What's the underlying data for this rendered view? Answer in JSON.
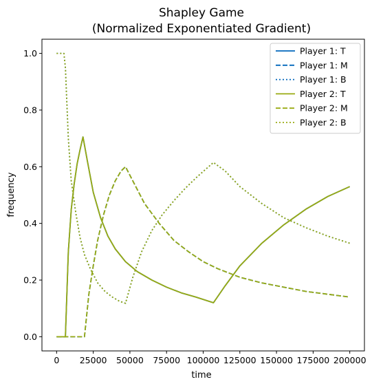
{
  "chart_data": {
    "type": "line",
    "title_line1": "Shapley Game",
    "title_line2": "(Normalized Exponentiated Gradient)",
    "xlabel": "time",
    "ylabel": "frequency",
    "xlim": [
      -10000,
      210000
    ],
    "ylim": [
      -0.05,
      1.05
    ],
    "xticks": [
      0,
      25000,
      50000,
      75000,
      100000,
      125000,
      150000,
      175000,
      200000
    ],
    "xtick_labels": [
      "0",
      "25000",
      "50000",
      "75000",
      "100000",
      "125000",
      "150000",
      "175000",
      "200000"
    ],
    "yticks": [
      0.0,
      0.2,
      0.4,
      0.6,
      0.8,
      1.0
    ],
    "ytick_labels": [
      "0.0",
      "0.2",
      "0.4",
      "0.6",
      "0.8",
      "1.0"
    ],
    "grid": false,
    "legend_position": "top-right",
    "series": [
      {
        "name": "Player 1: T",
        "color": "#0066bb",
        "dash": "solid",
        "points": [
          [
            0,
            0
          ],
          [
            6000,
            0
          ],
          [
            8000,
            0.3
          ],
          [
            10000,
            0.45
          ],
          [
            12000,
            0.54
          ],
          [
            14000,
            0.61
          ],
          [
            16000,
            0.66
          ],
          [
            18000,
            0.705
          ],
          [
            21000,
            0.62
          ],
          [
            25000,
            0.51
          ],
          [
            30000,
            0.42
          ],
          [
            35000,
            0.355
          ],
          [
            40000,
            0.31
          ],
          [
            47000,
            0.265
          ],
          [
            55000,
            0.23
          ],
          [
            65000,
            0.2
          ],
          [
            75000,
            0.175
          ],
          [
            85000,
            0.155
          ],
          [
            95000,
            0.14
          ],
          [
            107000,
            0.12
          ],
          [
            115000,
            0.18
          ],
          [
            125000,
            0.25
          ],
          [
            140000,
            0.33
          ],
          [
            155000,
            0.395
          ],
          [
            170000,
            0.45
          ],
          [
            185000,
            0.495
          ],
          [
            200000,
            0.53
          ]
        ]
      },
      {
        "name": "Player 1: M",
        "color": "#0066bb",
        "dash": "dashed",
        "points": [
          [
            0,
            0
          ],
          [
            19000,
            0
          ],
          [
            22000,
            0.15
          ],
          [
            25000,
            0.25
          ],
          [
            28000,
            0.34
          ],
          [
            32000,
            0.43
          ],
          [
            36000,
            0.5
          ],
          [
            40000,
            0.55
          ],
          [
            44000,
            0.585
          ],
          [
            47000,
            0.6
          ],
          [
            52000,
            0.55
          ],
          [
            60000,
            0.47
          ],
          [
            70000,
            0.4
          ],
          [
            80000,
            0.34
          ],
          [
            90000,
            0.3
          ],
          [
            100000,
            0.265
          ],
          [
            110000,
            0.24
          ],
          [
            125000,
            0.21
          ],
          [
            140000,
            0.19
          ],
          [
            155000,
            0.175
          ],
          [
            170000,
            0.16
          ],
          [
            185000,
            0.15
          ],
          [
            200000,
            0.14
          ]
        ]
      },
      {
        "name": "Player 1: B",
        "color": "#0066bb",
        "dash": "dotted",
        "points": [
          [
            0,
            1.0
          ],
          [
            5000,
            1.0
          ],
          [
            6000,
            0.95
          ],
          [
            8000,
            0.7
          ],
          [
            10000,
            0.55
          ],
          [
            13000,
            0.44
          ],
          [
            16000,
            0.35
          ],
          [
            19000,
            0.29
          ],
          [
            23000,
            0.24
          ],
          [
            28000,
            0.19
          ],
          [
            33000,
            0.16
          ],
          [
            38000,
            0.14
          ],
          [
            43000,
            0.125
          ],
          [
            47000,
            0.118
          ],
          [
            52000,
            0.21
          ],
          [
            58000,
            0.3
          ],
          [
            65000,
            0.375
          ],
          [
            72000,
            0.43
          ],
          [
            80000,
            0.48
          ],
          [
            88000,
            0.525
          ],
          [
            96000,
            0.565
          ],
          [
            107000,
            0.615
          ],
          [
            115000,
            0.585
          ],
          [
            125000,
            0.53
          ],
          [
            140000,
            0.47
          ],
          [
            155000,
            0.42
          ],
          [
            170000,
            0.385
          ],
          [
            185000,
            0.355
          ],
          [
            200000,
            0.33
          ]
        ]
      },
      {
        "name": "Player 2: T",
        "color": "#99aa11",
        "dash": "solid",
        "points": [
          [
            0,
            0
          ],
          [
            6000,
            0
          ],
          [
            8000,
            0.3
          ],
          [
            10000,
            0.45
          ],
          [
            12000,
            0.54
          ],
          [
            14000,
            0.61
          ],
          [
            16000,
            0.66
          ],
          [
            18000,
            0.705
          ],
          [
            21000,
            0.62
          ],
          [
            25000,
            0.51
          ],
          [
            30000,
            0.42
          ],
          [
            35000,
            0.355
          ],
          [
            40000,
            0.31
          ],
          [
            47000,
            0.265
          ],
          [
            55000,
            0.23
          ],
          [
            65000,
            0.2
          ],
          [
            75000,
            0.175
          ],
          [
            85000,
            0.155
          ],
          [
            95000,
            0.14
          ],
          [
            107000,
            0.12
          ],
          [
            115000,
            0.18
          ],
          [
            125000,
            0.25
          ],
          [
            140000,
            0.33
          ],
          [
            155000,
            0.395
          ],
          [
            170000,
            0.45
          ],
          [
            185000,
            0.495
          ],
          [
            200000,
            0.53
          ]
        ]
      },
      {
        "name": "Player 2: M",
        "color": "#99aa11",
        "dash": "dashed",
        "points": [
          [
            0,
            0
          ],
          [
            19000,
            0
          ],
          [
            22000,
            0.15
          ],
          [
            25000,
            0.25
          ],
          [
            28000,
            0.34
          ],
          [
            32000,
            0.43
          ],
          [
            36000,
            0.5
          ],
          [
            40000,
            0.55
          ],
          [
            44000,
            0.585
          ],
          [
            47000,
            0.6
          ],
          [
            52000,
            0.55
          ],
          [
            60000,
            0.47
          ],
          [
            70000,
            0.4
          ],
          [
            80000,
            0.34
          ],
          [
            90000,
            0.3
          ],
          [
            100000,
            0.265
          ],
          [
            110000,
            0.24
          ],
          [
            125000,
            0.21
          ],
          [
            140000,
            0.19
          ],
          [
            155000,
            0.175
          ],
          [
            170000,
            0.16
          ],
          [
            185000,
            0.15
          ],
          [
            200000,
            0.14
          ]
        ]
      },
      {
        "name": "Player 2: B",
        "color": "#99aa11",
        "dash": "dotted",
        "points": [
          [
            0,
            1.0
          ],
          [
            5000,
            1.0
          ],
          [
            6000,
            0.95
          ],
          [
            8000,
            0.7
          ],
          [
            10000,
            0.55
          ],
          [
            13000,
            0.44
          ],
          [
            16000,
            0.35
          ],
          [
            19000,
            0.29
          ],
          [
            23000,
            0.24
          ],
          [
            28000,
            0.19
          ],
          [
            33000,
            0.16
          ],
          [
            38000,
            0.14
          ],
          [
            43000,
            0.125
          ],
          [
            47000,
            0.118
          ],
          [
            52000,
            0.21
          ],
          [
            58000,
            0.3
          ],
          [
            65000,
            0.375
          ],
          [
            72000,
            0.43
          ],
          [
            80000,
            0.48
          ],
          [
            88000,
            0.525
          ],
          [
            96000,
            0.565
          ],
          [
            107000,
            0.615
          ],
          [
            115000,
            0.585
          ],
          [
            125000,
            0.53
          ],
          [
            140000,
            0.47
          ],
          [
            155000,
            0.42
          ],
          [
            170000,
            0.385
          ],
          [
            185000,
            0.355
          ],
          [
            200000,
            0.33
          ]
        ]
      }
    ]
  }
}
